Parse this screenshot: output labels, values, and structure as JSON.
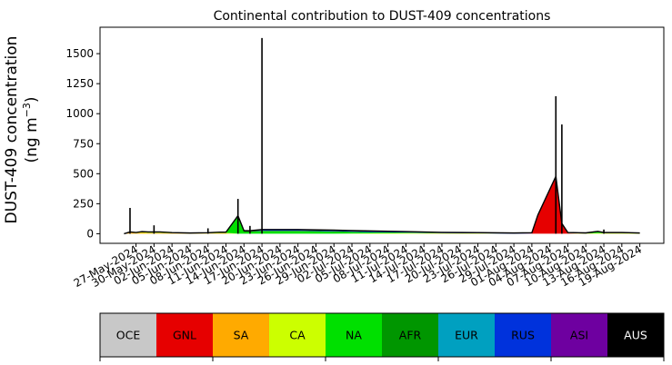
{
  "chart_data": {
    "type": "area",
    "title": "Continental contribution to DUST-409 concentrations",
    "ylabel_line1": "DUST-409 concentration",
    "ylabel_line2": "(ng m",
    "ylabel_unit_exp": "−3",
    "ylabel_close": ")",
    "ylim": [
      -80,
      1720
    ],
    "yticks": [
      0,
      250,
      500,
      750,
      1000,
      1250,
      1500
    ],
    "xlim": [
      "2024-05-21",
      "2024-08-23"
    ],
    "xticks": [
      "27-May-2024",
      "30-May-2024",
      "02-Jun-2024",
      "05-Jun-2024",
      "08-Jun-2024",
      "11-Jun-2024",
      "14-Jun-2024",
      "17-Jun-2024",
      "20-Jun-2024",
      "23-Jun-2024",
      "26-Jun-2024",
      "29-Jun-2024",
      "02-Jul-2024",
      "05-Jul-2024",
      "08-Jul-2024",
      "11-Jul-2024",
      "14-Jul-2024",
      "17-Jul-2024",
      "20-Jul-2024",
      "23-Jul-2024",
      "26-Jul-2024",
      "29-Jul-2024",
      "01-Aug-2024",
      "04-Aug-2024",
      "07-Aug-2024",
      "10-Aug-2024",
      "13-Aug-2024",
      "16-Aug-2024",
      "19-Aug-2024"
    ],
    "grid": false,
    "legend_placement": "bottom",
    "series": [
      {
        "name": "OCE",
        "color": "#c8c8c8",
        "text_color": "#000000"
      },
      {
        "name": "GNL",
        "color": "#e60000",
        "text_color": "#000000"
      },
      {
        "name": "SA",
        "color": "#ffaa00",
        "text_color": "#000000"
      },
      {
        "name": "CA",
        "color": "#ccff00",
        "text_color": "#000000"
      },
      {
        "name": "NA",
        "color": "#00e000",
        "text_color": "#000000"
      },
      {
        "name": "AFR",
        "color": "#009600",
        "text_color": "#000000"
      },
      {
        "name": "EUR",
        "color": "#00a0c0",
        "text_color": "#000000"
      },
      {
        "name": "RUS",
        "color": "#0032dc",
        "text_color": "#000000"
      },
      {
        "name": "ASI",
        "color": "#6e00a0",
        "text_color": "#000000"
      },
      {
        "name": "AUS",
        "color": "#000000",
        "text_color": "#ffffff"
      }
    ],
    "stacks": [
      {
        "x": "2024-05-25",
        "values": [
          0,
          0,
          0,
          0,
          0,
          0,
          0,
          0,
          0,
          0
        ]
      },
      {
        "x": "2024-05-26",
        "values": [
          0,
          0,
          10,
          5,
          0,
          0,
          0,
          0,
          0,
          0
        ]
      },
      {
        "x": "2024-05-27",
        "values": [
          0,
          0,
          5,
          5,
          0,
          0,
          0,
          0,
          0,
          0
        ]
      },
      {
        "x": "2024-05-28",
        "values": [
          0,
          0,
          8,
          5,
          0,
          0,
          0,
          0,
          0,
          5
        ]
      },
      {
        "x": "2024-05-29",
        "values": [
          0,
          0,
          5,
          5,
          0,
          0,
          0,
          0,
          0,
          5
        ]
      },
      {
        "x": "2024-05-31",
        "values": [
          0,
          0,
          5,
          5,
          0,
          0,
          0,
          0,
          0,
          5
        ]
      },
      {
        "x": "2024-06-02",
        "values": [
          0,
          0,
          3,
          3,
          0,
          0,
          0,
          0,
          0,
          3
        ]
      },
      {
        "x": "2024-06-05",
        "values": [
          0,
          0,
          2,
          2,
          0,
          0,
          0,
          0,
          0,
          2
        ]
      },
      {
        "x": "2024-06-08",
        "values": [
          0,
          0,
          2,
          3,
          0,
          0,
          0,
          0,
          0,
          3
        ]
      },
      {
        "x": "2024-06-10",
        "values": [
          0,
          0,
          3,
          5,
          0,
          0,
          0,
          0,
          0,
          5
        ]
      },
      {
        "x": "2024-06-11",
        "values": [
          0,
          0,
          3,
          5,
          0,
          0,
          0,
          0,
          0,
          5
        ]
      },
      {
        "x": "2024-06-13",
        "values": [
          0,
          0,
          0,
          0,
          140,
          5,
          0,
          0,
          0,
          5
        ]
      },
      {
        "x": "2024-06-14",
        "values": [
          0,
          0,
          0,
          0,
          15,
          5,
          0,
          0,
          0,
          5
        ]
      },
      {
        "x": "2024-06-15",
        "values": [
          0,
          0,
          0,
          0,
          15,
          5,
          0,
          0,
          0,
          5
        ]
      },
      {
        "x": "2024-06-17",
        "values": [
          0,
          0,
          0,
          0,
          20,
          5,
          0,
          5,
          0,
          5
        ]
      },
      {
        "x": "2024-06-23",
        "values": [
          0,
          0,
          0,
          0,
          20,
          5,
          0,
          5,
          0,
          5
        ]
      },
      {
        "x": "2024-06-29",
        "values": [
          0,
          0,
          0,
          0,
          15,
          5,
          0,
          5,
          0,
          5
        ]
      },
      {
        "x": "2024-07-05",
        "values": [
          0,
          0,
          0,
          3,
          10,
          0,
          0,
          5,
          0,
          5
        ]
      },
      {
        "x": "2024-07-11",
        "values": [
          0,
          0,
          0,
          5,
          5,
          0,
          0,
          5,
          0,
          3
        ]
      },
      {
        "x": "2024-07-17",
        "values": [
          0,
          0,
          0,
          5,
          0,
          0,
          0,
          3,
          0,
          3
        ]
      },
      {
        "x": "2024-07-23",
        "values": [
          0,
          0,
          0,
          3,
          0,
          0,
          0,
          3,
          0,
          3
        ]
      },
      {
        "x": "2024-07-29",
        "values": [
          0,
          0,
          0,
          0,
          0,
          0,
          0,
          3,
          0,
          3
        ]
      },
      {
        "x": "2024-08-01",
        "values": [
          0,
          2,
          0,
          0,
          0,
          0,
          0,
          3,
          0,
          3
        ]
      },
      {
        "x": "2024-08-02",
        "values": [
          0,
          150,
          0,
          0,
          0,
          0,
          0,
          3,
          0,
          3
        ]
      },
      {
        "x": "2024-08-05",
        "values": [
          0,
          470,
          0,
          0,
          0,
          0,
          0,
          3,
          0,
          5
        ]
      },
      {
        "x": "2024-08-06",
        "values": [
          0,
          80,
          0,
          0,
          0,
          0,
          0,
          0,
          0,
          5
        ]
      },
      {
        "x": "2024-08-07",
        "values": [
          0,
          3,
          0,
          2,
          0,
          0,
          0,
          0,
          0,
          5
        ]
      },
      {
        "x": "2024-08-10",
        "values": [
          0,
          0,
          0,
          2,
          0,
          0,
          0,
          0,
          0,
          5
        ]
      },
      {
        "x": "2024-08-12",
        "values": [
          0,
          0,
          0,
          5,
          10,
          0,
          0,
          0,
          0,
          5
        ]
      },
      {
        "x": "2024-08-13",
        "values": [
          0,
          0,
          0,
          5,
          0,
          0,
          0,
          0,
          0,
          5
        ]
      },
      {
        "x": "2024-08-16",
        "values": [
          0,
          0,
          0,
          5,
          0,
          0,
          0,
          0,
          0,
          5
        ]
      },
      {
        "x": "2024-08-19",
        "values": [
          0,
          0,
          0,
          3,
          0,
          0,
          0,
          0,
          0,
          3
        ]
      }
    ],
    "spikes": [
      {
        "x": "2024-05-26",
        "y": 215
      },
      {
        "x": "2024-05-30",
        "y": 70
      },
      {
        "x": "2024-06-08",
        "y": 45
      },
      {
        "x": "2024-06-13",
        "y": 290
      },
      {
        "x": "2024-06-15",
        "y": 65
      },
      {
        "x": "2024-06-17",
        "y": 1630
      },
      {
        "x": "2024-08-05",
        "y": 1145
      },
      {
        "x": "2024-08-06",
        "y": 910
      },
      {
        "x": "2024-08-13",
        "y": 35
      }
    ]
  }
}
